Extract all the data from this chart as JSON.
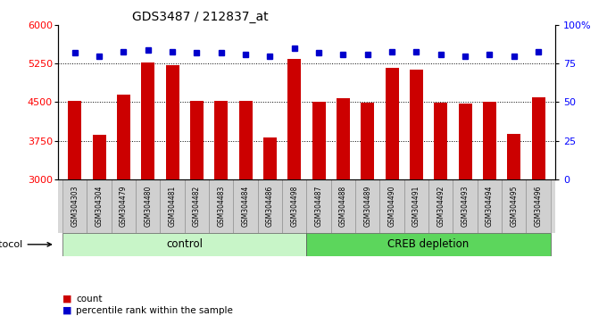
{
  "title": "GDS3487 / 212837_at",
  "samples": [
    "GSM304303",
    "GSM304304",
    "GSM304479",
    "GSM304480",
    "GSM304481",
    "GSM304482",
    "GSM304483",
    "GSM304484",
    "GSM304486",
    "GSM304498",
    "GSM304487",
    "GSM304488",
    "GSM304489",
    "GSM304490",
    "GSM304491",
    "GSM304492",
    "GSM304493",
    "GSM304494",
    "GSM304495",
    "GSM304496"
  ],
  "bar_values": [
    4530,
    3870,
    4650,
    5270,
    5220,
    4530,
    4530,
    4530,
    3820,
    5340,
    4510,
    4570,
    4490,
    5170,
    5130,
    4490,
    4480,
    4500,
    3880,
    4600
  ],
  "dot_values": [
    82,
    80,
    83,
    84,
    83,
    82,
    82,
    81,
    80,
    85,
    82,
    81,
    81,
    83,
    83,
    81,
    80,
    81,
    80,
    83
  ],
  "groups": [
    {
      "label": "control",
      "start": 0,
      "end": 10,
      "color": "#c8f5c8"
    },
    {
      "label": "CREB depletion",
      "start": 10,
      "end": 20,
      "color": "#5cd65c"
    }
  ],
  "bar_color": "#cc0000",
  "dot_color": "#0000cc",
  "ylim_left": [
    3000,
    6000
  ],
  "ylim_right": [
    0,
    100
  ],
  "yticks_left": [
    3000,
    3750,
    4500,
    5250,
    6000
  ],
  "yticks_right": [
    0,
    25,
    50,
    75,
    100
  ],
  "grid_values": [
    3750,
    4500,
    5250
  ],
  "legend_count_label": "count",
  "legend_pct_label": "percentile rank within the sample",
  "protocol_label": "protocol",
  "background_color": "#ffffff",
  "plot_bg_color": "#ffffff",
  "xticklabel_bg": "#d8d8d8",
  "n_control": 10,
  "n_total": 20
}
